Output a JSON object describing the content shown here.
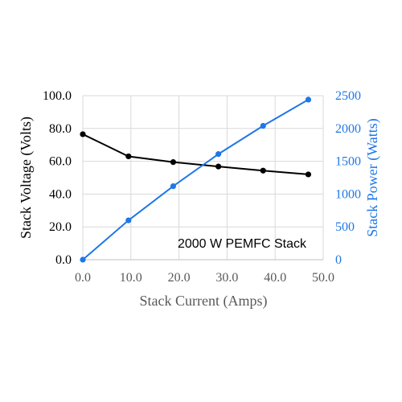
{
  "chart_data": {
    "type": "line",
    "annotation": "2000 W PEMFC Stack",
    "xlabel": "Stack Current (Amps)",
    "ylabel": "Stack Voltage (Volts)",
    "y2label": "Stack Power (Watts)",
    "xlim": [
      0,
      50
    ],
    "ylim": [
      0,
      100
    ],
    "y2lim": [
      0,
      2500
    ],
    "x_ticks": [
      "0.0",
      "10.0",
      "20.0",
      "30.0",
      "40.0",
      "50.0"
    ],
    "y_ticks": [
      "0.0",
      "20.0",
      "40.0",
      "60.0",
      "80.0",
      "100.0"
    ],
    "y2_ticks": [
      "0",
      "500",
      "1000",
      "1500",
      "2000",
      "2500"
    ],
    "grid": true,
    "series": [
      {
        "axis": "left",
        "color": "#000000",
        "x": [
          0.0,
          9.5,
          18.8,
          28.2,
          37.5,
          46.9
        ],
        "y": [
          76.5,
          63.0,
          59.5,
          56.8,
          54.3,
          52.0
        ]
      },
      {
        "axis": "right",
        "color": "#1f77e8",
        "x": [
          0.0,
          9.5,
          18.8,
          28.2,
          37.5,
          46.9
        ],
        "y": [
          0,
          600,
          1120,
          1610,
          2040,
          2440
        ]
      }
    ]
  }
}
